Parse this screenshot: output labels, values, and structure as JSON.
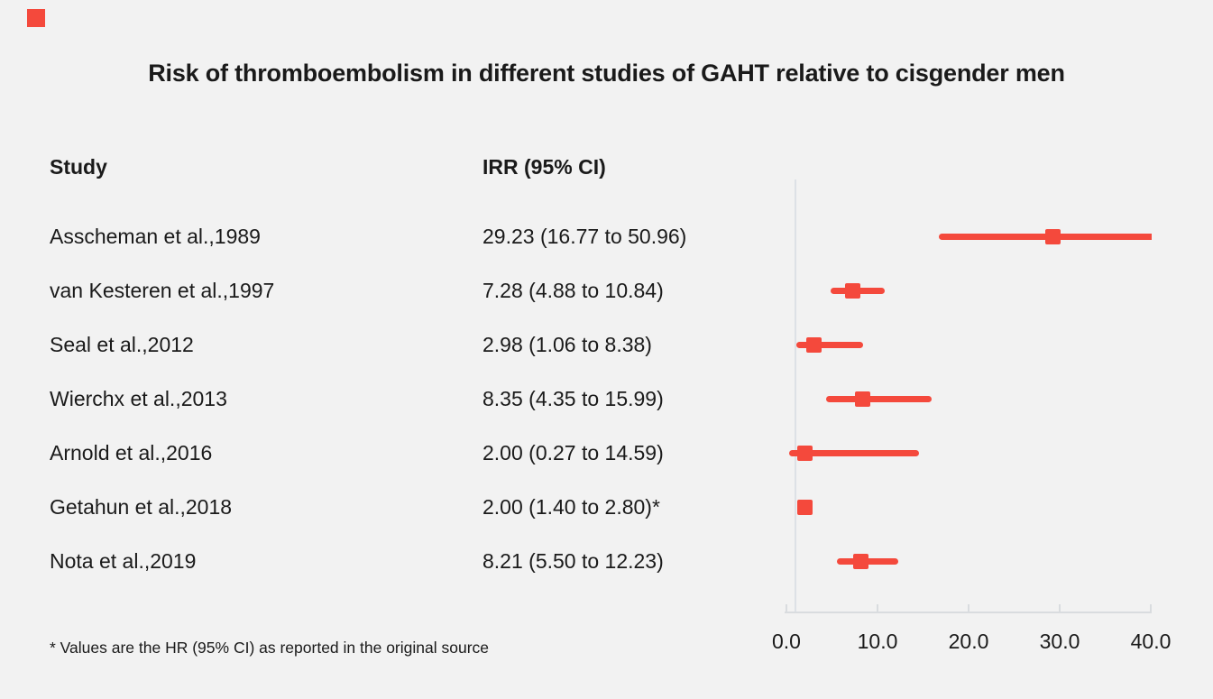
{
  "title": "Risk of thromboembolism in different studies of GAHT relative to cisgender men",
  "table": {
    "study_header": "Study",
    "irr_header": "IRR (95% CI)"
  },
  "footnote": "* Values are the HR (95% CI) as reported in the original source",
  "colors": {
    "background": "#F2F2F2",
    "text": "#1A1A1A",
    "marker_red": "#F4493C",
    "reference_line": "#DDE1E6",
    "axis": "#D9DCDF"
  },
  "chart_data": {
    "type": "scatter",
    "subtype": "forest-plot",
    "title": "Risk of thromboembolism in different studies of GAHT relative to cisgender men",
    "xlabel": "",
    "ylabel": "",
    "xlim": [
      0,
      40
    ],
    "grid": false,
    "legend": false,
    "reference_line_x": 1.0,
    "xtick_values": [
      0,
      10,
      20,
      30,
      40
    ],
    "xtick_labels": [
      "0.0",
      "10.0",
      "20.0",
      "30.0",
      "40.0"
    ],
    "categories": [
      "Asscheman et al.,1989",
      "van Kesteren et al.,1997",
      "Seal et al.,2012",
      "Wierchx et al.,2013",
      "Arnold et al.,2016",
      "Getahun et al.,2018",
      "Nota et al.,2019"
    ],
    "series": [
      {
        "name": "IRR (95% CI)",
        "values": [
          29.23,
          7.28,
          2.98,
          8.35,
          2.0,
          2.0,
          8.21
        ],
        "ci_low": [
          16.77,
          4.88,
          1.06,
          4.35,
          0.27,
          1.4,
          5.5
        ],
        "ci_high": [
          50.96,
          10.84,
          8.38,
          15.99,
          14.59,
          2.8,
          12.23
        ]
      }
    ],
    "rows": [
      {
        "study": "Asscheman et al.,1989",
        "irr_text": "29.23 (16.77 to 50.96)",
        "irr": 29.23,
        "ci_low": 16.77,
        "ci_high": 50.96
      },
      {
        "study": "van Kesteren et al.,1997",
        "irr_text": "7.28 (4.88 to 10.84)",
        "irr": 7.28,
        "ci_low": 4.88,
        "ci_high": 10.84
      },
      {
        "study": "Seal et al.,2012",
        "irr_text": "2.98 (1.06 to 8.38)",
        "irr": 2.98,
        "ci_low": 1.06,
        "ci_high": 8.38
      },
      {
        "study": "Wierchx et al.,2013",
        "irr_text": "8.35 (4.35 to 15.99)",
        "irr": 8.35,
        "ci_low": 4.35,
        "ci_high": 15.99
      },
      {
        "study": "Arnold et al.,2016",
        "irr_text": "2.00 (0.27 to 14.59)",
        "irr": 2.0,
        "ci_low": 0.27,
        "ci_high": 14.59
      },
      {
        "study": "Getahun et al.,2018",
        "irr_text": "2.00 (1.40 to 2.80)*",
        "irr": 2.0,
        "ci_low": 1.4,
        "ci_high": 2.8
      },
      {
        "study": "Nota et al.,2019",
        "irr_text": "8.21 (5.50 to 12.23)",
        "irr": 8.21,
        "ci_low": 5.5,
        "ci_high": 12.23
      }
    ]
  }
}
